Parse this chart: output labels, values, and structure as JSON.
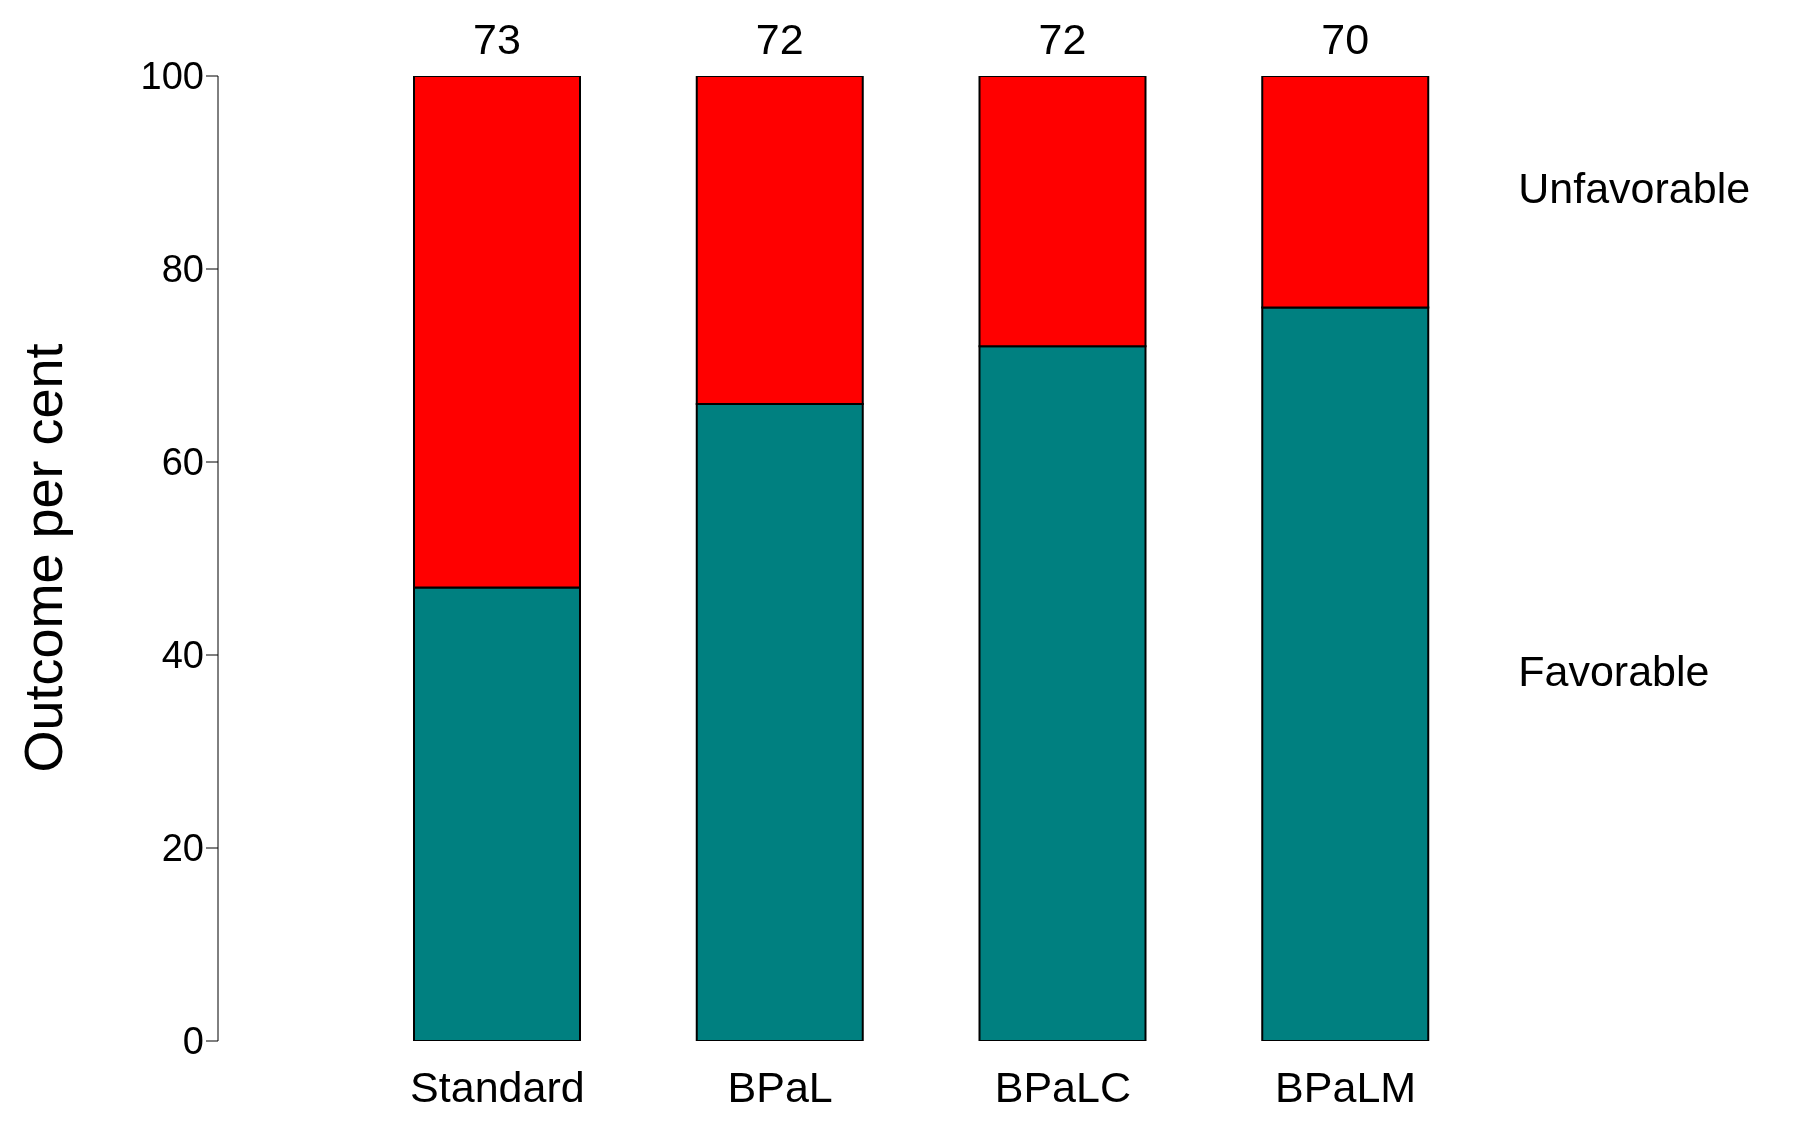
{
  "chart_data": {
    "type": "bar",
    "stacked": true,
    "ylabel": "Outcome per cent",
    "categories": [
      "Standard",
      "BPaL",
      "BPaLC",
      "BPaLM"
    ],
    "series": [
      {
        "name": "Favorable",
        "color": "#008080",
        "values": [
          47,
          66,
          72,
          76
        ]
      },
      {
        "name": "Unfavorable",
        "color": "#ff0000",
        "values": [
          53,
          34,
          28,
          24
        ]
      }
    ],
    "ylim": [
      0,
      100
    ],
    "yticks": [
      0,
      20,
      40,
      60,
      80,
      100
    ],
    "grid": false,
    "annotations": [
      {
        "text": "73",
        "x": "Standard",
        "y": 100
      },
      {
        "text": "72",
        "x": "BPaL",
        "y": 100
      },
      {
        "text": "72",
        "x": "BPaLC",
        "y": 100
      },
      {
        "text": "70",
        "x": "BPaLM",
        "y": 100
      }
    ]
  }
}
